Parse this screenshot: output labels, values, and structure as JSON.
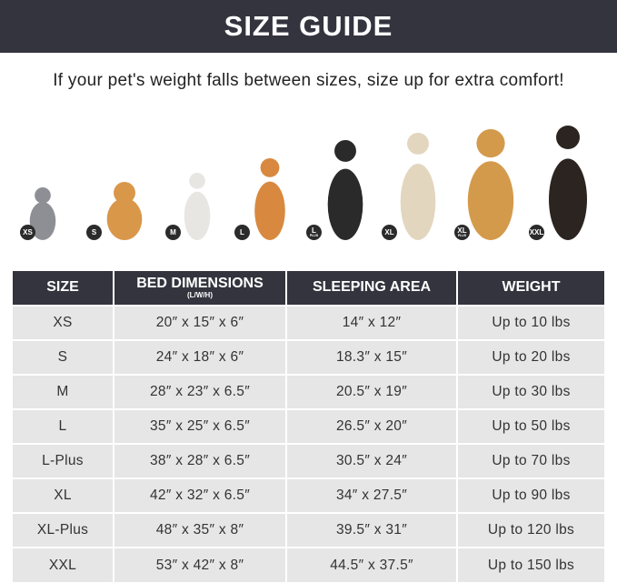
{
  "header": {
    "title": "SIZE GUIDE"
  },
  "subtitle": "If your pet's weight falls between sizes, size up for extra comfort!",
  "pets": [
    {
      "badge": "XS",
      "plus": "",
      "animal": "cat",
      "color": "#8d8f94"
    },
    {
      "badge": "S",
      "plus": "",
      "animal": "pomeranian",
      "color": "#d9974a"
    },
    {
      "badge": "M",
      "plus": "",
      "animal": "french-bulldog",
      "color": "#e8e6e2"
    },
    {
      "badge": "L",
      "plus": "",
      "animal": "shiba-inu",
      "color": "#d8893f"
    },
    {
      "badge": "L",
      "plus": "PLUS",
      "animal": "border-collie",
      "color": "#2a2a2a"
    },
    {
      "badge": "XL",
      "plus": "",
      "animal": "labrador",
      "color": "#e3d6bf"
    },
    {
      "badge": "XL",
      "plus": "PLUS",
      "animal": "golden-retriever",
      "color": "#d49a4c"
    },
    {
      "badge": "XXL",
      "plus": "",
      "animal": "doberman",
      "color": "#2b2420"
    }
  ],
  "table": {
    "headers": [
      "SIZE",
      "BED DIMENSIONS",
      "SLEEPING AREA",
      "WEIGHT"
    ],
    "bed_sub": "(L/W/H)",
    "rows": [
      [
        "XS",
        "20″ x 15″ x 6″",
        "14″ x 12″",
        "Up to 10 lbs"
      ],
      [
        "S",
        "24″ x 18″ x 6″",
        "18.3″ x 15″",
        "Up to 20 lbs"
      ],
      [
        "M",
        "28″ x 23″ x 6.5″",
        "20.5″ x 19″",
        "Up to 30 lbs"
      ],
      [
        "L",
        "35″ x 25″ x 6.5″",
        "26.5″ x 20″",
        "Up to 50 lbs"
      ],
      [
        "L-Plus",
        "38″ x 28″ x 6.5″",
        "30.5″ x 24″",
        "Up to 70 lbs"
      ],
      [
        "XL",
        "42″ x 32″ x 6.5″",
        "34″ x 27.5″",
        "Up to 90 lbs"
      ],
      [
        "XL-Plus",
        "48″ x 35″ x 8″",
        "39.5″ x 31″",
        "Up to 120 lbs"
      ],
      [
        "XXL",
        "53″ x 42″ x 8″",
        "44.5″ x 37.5″",
        "Up to 150 lbs"
      ]
    ]
  }
}
